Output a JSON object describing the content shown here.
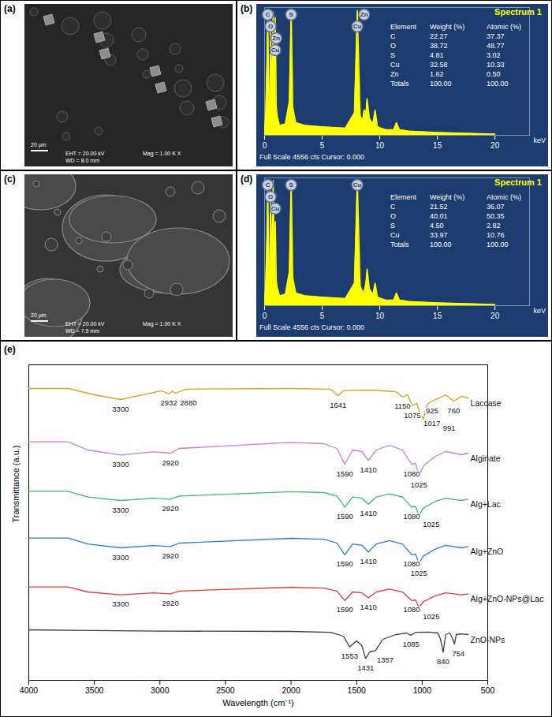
{
  "images": [
    {
      "panel_label": "(a)",
      "scale_bar": "20 µm",
      "eht": "EHT = 20.00 kV",
      "wd": "WD = 8.0 mm",
      "mag": "Mag = 1.00 K X"
    },
    {
      "panel_label": "(c)",
      "scale_bar": "20 µm",
      "eht": "EHT = 20.00 kV",
      "wd": "WD = 7.5 mm",
      "mag": "Mag = 1.00 K X"
    }
  ],
  "chart_data": [
    {
      "panel_label": "(b)",
      "type": "area",
      "title": "Spectrum 1",
      "color": "#ffff00",
      "x": [
        0,
        0.1,
        0.2,
        0.28,
        0.36,
        0.45,
        0.52,
        0.6,
        0.75,
        0.85,
        0.93,
        1.02,
        1.1,
        1.3,
        1.8,
        2.15,
        2.31,
        2.45,
        2.7,
        3.5,
        5,
        7,
        7.8,
        8.05,
        8.3,
        8.5,
        8.64,
        8.8,
        8.9,
        9.1,
        9.4,
        9.6,
        9.8,
        10.5,
        11.2,
        11.45,
        11.7,
        12.5,
        15,
        18,
        20
      ],
      "values": [
        100,
        800,
        2500,
        4300,
        1500,
        900,
        3800,
        1200,
        4400,
        1600,
        4200,
        1000,
        700,
        350,
        400,
        1200,
        4500,
        1000,
        450,
        350,
        300,
        250,
        800,
        4450,
        700,
        500,
        900,
        800,
        1300,
        600,
        400,
        900,
        300,
        200,
        200,
        450,
        200,
        150,
        100,
        60,
        40
      ],
      "xlim": [
        0,
        23
      ],
      "xticks": [
        0,
        5,
        10,
        15,
        20
      ],
      "ylim": [
        0,
        4556
      ],
      "tick_labels": "x",
      "x_label": "keV",
      "footer": "Full Scale 4556 cts Cursor: 0.000",
      "annotations": [
        {
          "text": "C",
          "x": 0.28
        },
        {
          "text": "O",
          "x": 0.52
        },
        {
          "text": "Zn",
          "x": 1.01
        },
        {
          "text": "Cu",
          "x": 0.93
        },
        {
          "text": "S",
          "x": 2.31
        },
        {
          "text": "Zn",
          "x": 8.64
        },
        {
          "text": "Cu",
          "x": 8.05
        }
      ],
      "table": {
        "columns": [
          "Element",
          "Weight (%)",
          "Atomic (%)"
        ],
        "rows": [
          [
            "C",
            "22.27",
            "37.37"
          ],
          [
            "O",
            "38.72",
            "48.77"
          ],
          [
            "S",
            "4.81",
            "3.02"
          ],
          [
            "Cu",
            "32.58",
            "10.33"
          ],
          [
            "Zn",
            "1.62",
            "0.50"
          ],
          [
            "Totals",
            "100.00",
            "100.00"
          ]
        ]
      }
    },
    {
      "panel_label": "(d)",
      "type": "area",
      "title": "Spectrum 1",
      "color": "#ffff00",
      "x": [
        0,
        0.1,
        0.2,
        0.28,
        0.36,
        0.45,
        0.52,
        0.6,
        0.75,
        0.85,
        0.93,
        1.02,
        1.1,
        1.3,
        1.8,
        2.15,
        2.31,
        2.45,
        2.7,
        3.5,
        5,
        7,
        7.8,
        8.05,
        8.3,
        8.5,
        8.64,
        8.8,
        8.9,
        9.1,
        9.4,
        9.6,
        9.8,
        10.5,
        11.2,
        11.45,
        11.7,
        12.5,
        15,
        18,
        20
      ],
      "values": [
        100,
        800,
        2400,
        4200,
        1500,
        950,
        3900,
        1200,
        4450,
        1600,
        3000,
        900,
        650,
        350,
        400,
        1200,
        4480,
        1000,
        450,
        350,
        300,
        250,
        800,
        4480,
        700,
        500,
        500,
        800,
        1300,
        600,
        400,
        800,
        300,
        200,
        200,
        450,
        200,
        150,
        100,
        60,
        40
      ],
      "xlim": [
        0,
        23
      ],
      "xticks": [
        0,
        5,
        10,
        15,
        20
      ],
      "ylim": [
        0,
        4556
      ],
      "tick_labels": "x",
      "x_label": "keV",
      "footer": "Full Scale 4556 cts Cursor: 0.000",
      "annotations": [
        {
          "text": "C",
          "x": 0.28
        },
        {
          "text": "O",
          "x": 0.52
        },
        {
          "text": "Cu",
          "x": 0.93
        },
        {
          "text": "S",
          "x": 2.31
        },
        {
          "text": "Cu",
          "x": 8.05
        }
      ],
      "table": {
        "columns": [
          "Element",
          "Weight (%)",
          "Atomic (%)"
        ],
        "rows": [
          [
            "C",
            "21.52",
            "36.07"
          ],
          [
            "O",
            "40.01",
            "50.35"
          ],
          [
            "S",
            "4.50",
            "2.82"
          ],
          [
            "Cu",
            "33.97",
            "10.76"
          ],
          [
            "Totals",
            "100.00",
            "100.00"
          ]
        ]
      }
    },
    {
      "panel_label": "(e)",
      "type": "line",
      "x_label": "Wavelength (cm⁻¹)",
      "y_label": "Transmittance (a.u.)",
      "xlim": [
        4000,
        500
      ],
      "xticks": [
        4000,
        3500,
        3000,
        2500,
        2000,
        1500,
        1000,
        500
      ],
      "ylim": [
        0,
        100
      ],
      "tick_labels": "x",
      "series": [
        {
          "name": "Laccase",
          "color": "#d4a520",
          "x": [
            4000,
            3700,
            3500,
            3300,
            3100,
            2990,
            2932,
            2905,
            2880,
            2800,
            2000,
            1700,
            1641,
            1600,
            1400,
            1200,
            1150,
            1110,
            1075,
            1040,
            1017,
            991,
            960,
            925,
            880,
            820,
            760,
            700,
            650
          ],
          "values": [
            92.5,
            92.5,
            90.5,
            89,
            90.8,
            91.8,
            90.8,
            91.6,
            91,
            92.3,
            92.5,
            92.3,
            90.2,
            91.8,
            92,
            91.5,
            89.8,
            90.5,
            87,
            87.8,
            84.5,
            82.8,
            87.5,
            88.5,
            89.3,
            90.5,
            88.5,
            90,
            89.5
          ],
          "peaks": [
            3300,
            2932,
            2880,
            1641,
            1150,
            1075,
            1017,
            991,
            925,
            760
          ]
        },
        {
          "name": "Alginate",
          "color": "#c07ee0",
          "x": [
            4000,
            3700,
            3550,
            3300,
            3050,
            2920,
            2850,
            2000,
            1750,
            1650,
            1590,
            1530,
            1460,
            1410,
            1350,
            1250,
            1150,
            1080,
            1050,
            1025,
            990,
            900,
            820,
            700,
            650
          ],
          "values": [
            75.6,
            75.6,
            73,
            71.4,
            72.4,
            72,
            73.5,
            75.4,
            75,
            73.5,
            68.5,
            73,
            72.5,
            69.7,
            73,
            74.5,
            73,
            68.5,
            68.8,
            64.8,
            68,
            71,
            72.5,
            71.5,
            72
          ],
          "peaks": [
            3300,
            2920,
            1590,
            1410,
            1080,
            1025
          ]
        },
        {
          "name": "Alg+Lac",
          "color": "#3dbb6e",
          "x": [
            4000,
            3700,
            3550,
            3300,
            3050,
            2920,
            2850,
            2000,
            1750,
            1650,
            1590,
            1530,
            1460,
            1410,
            1350,
            1250,
            1150,
            1080,
            1050,
            1025,
            990,
            900,
            820,
            700,
            650
          ],
          "values": [
            59.9,
            59.9,
            58.1,
            57,
            57.7,
            57.4,
            58.4,
            59.8,
            59.5,
            58.4,
            54.9,
            58.1,
            57.7,
            55.8,
            58.1,
            59.1,
            58.1,
            54.9,
            55.1,
            52.3,
            54.6,
            56.7,
            57.7,
            57,
            57.4
          ],
          "peaks": [
            3300,
            2920,
            1590,
            1410,
            1080,
            1025
          ]
        },
        {
          "name": "Alg+ZnO",
          "color": "#2f7ed8",
          "x": [
            4000,
            3700,
            3550,
            3300,
            3050,
            2920,
            2850,
            2000,
            1750,
            1650,
            1590,
            1530,
            1460,
            1410,
            1350,
            1250,
            1150,
            1080,
            1050,
            1025,
            990,
            900,
            820,
            700,
            650
          ],
          "values": [
            45.1,
            45.1,
            43.2,
            42,
            42.7,
            42.4,
            43.5,
            45,
            44.7,
            43.5,
            39.8,
            43.2,
            42.8,
            40.7,
            43.2,
            44.3,
            43.2,
            39.8,
            40,
            37,
            39.4,
            41.6,
            42.8,
            42,
            42.4
          ],
          "peaks": [
            3300,
            2920,
            1590,
            1410,
            1080,
            1025
          ]
        },
        {
          "name": "Alg+ZnO-NPs@Lac",
          "color": "#e8393c",
          "x": [
            4000,
            3700,
            3550,
            3300,
            3050,
            2920,
            2850,
            2000,
            1750,
            1650,
            1590,
            1530,
            1460,
            1410,
            1350,
            1250,
            1150,
            1080,
            1050,
            1025,
            990,
            900,
            820,
            700,
            650
          ],
          "values": [
            29.6,
            29.6,
            28,
            27.1,
            27.7,
            27.4,
            28.3,
            29.5,
            29.2,
            28.3,
            25.3,
            28,
            27.7,
            26.1,
            28,
            28.9,
            28,
            25.3,
            25.5,
            23.1,
            25,
            26.8,
            27.7,
            27.1,
            27.4
          ],
          "peaks": [
            3300,
            2920,
            1590,
            1410,
            1080,
            1025
          ]
        },
        {
          "name": "ZnO-NPs",
          "color": "#3c3c3c",
          "x": [
            4000,
            3500,
            3000,
            2000,
            1700,
            1600,
            1553,
            1500,
            1460,
            1431,
            1400,
            1357,
            1300,
            1200,
            1120,
            1085,
            1050,
            950,
            880,
            860,
            840,
            820,
            790,
            770,
            754,
            740,
            700,
            650
          ],
          "values": [
            16,
            15.8,
            15.6,
            15.5,
            15.2,
            14,
            10.6,
            12.5,
            11,
            6.9,
            9,
            9.4,
            13,
            14.5,
            15,
            14.3,
            15.2,
            15.3,
            15,
            13,
            8.9,
            14.5,
            15,
            13.5,
            11.5,
            14.5,
            14.7,
            14.5
          ],
          "peaks": [
            1553,
            1431,
            1357,
            1085,
            840,
            754
          ]
        }
      ]
    }
  ]
}
